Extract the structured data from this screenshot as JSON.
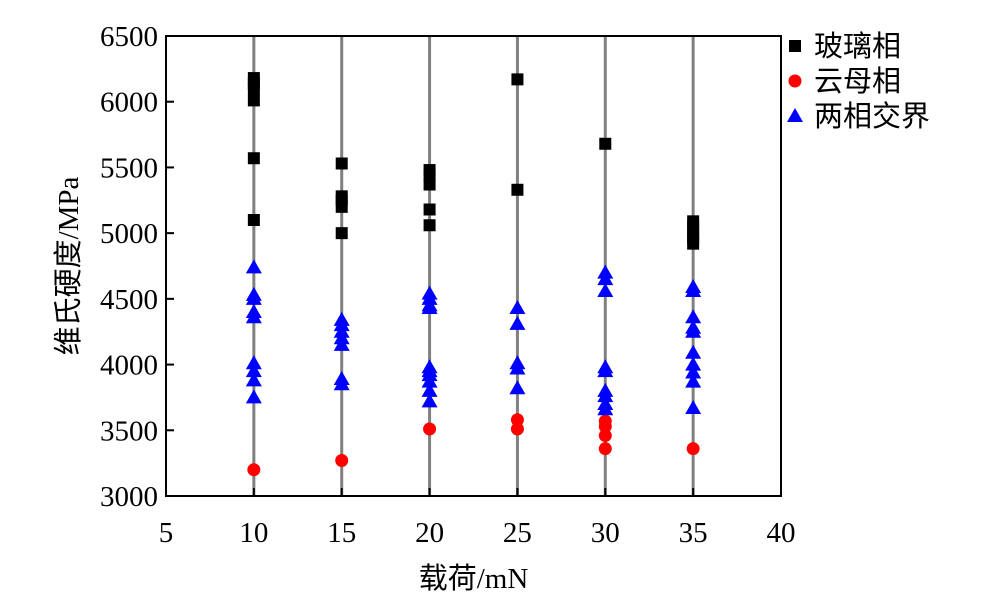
{
  "chart_data": {
    "type": "scatter",
    "xlabel": "载荷/mN",
    "ylabel": "维氏硬度/MPa",
    "xlim": [
      5,
      40
    ],
    "ylim": [
      3000,
      6500
    ],
    "xticks": [
      5,
      10,
      15,
      20,
      25,
      30,
      35,
      40
    ],
    "yticks": [
      3000,
      3500,
      4000,
      4500,
      5000,
      5500,
      6000,
      6500
    ],
    "vertical_lines_at": [
      10,
      15,
      20,
      25,
      30,
      35
    ],
    "legend_position": "top-right, outside plot area",
    "grid": false,
    "series": [
      {
        "name": "玻璃相",
        "marker": "square",
        "color": "#000000",
        "points": [
          [
            10,
            6180
          ],
          [
            10,
            6140
          ],
          [
            10,
            6100
          ],
          [
            10,
            6010
          ],
          [
            10,
            5570
          ],
          [
            10,
            5100
          ],
          [
            15,
            5530
          ],
          [
            15,
            5280
          ],
          [
            15,
            5250
          ],
          [
            15,
            5200
          ],
          [
            15,
            5000
          ],
          [
            20,
            5480
          ],
          [
            20,
            5440
          ],
          [
            20,
            5370
          ],
          [
            20,
            5180
          ],
          [
            20,
            5060
          ],
          [
            25,
            6170
          ],
          [
            25,
            5330
          ],
          [
            30,
            5680
          ],
          [
            35,
            5090
          ],
          [
            35,
            5050
          ],
          [
            35,
            5000
          ],
          [
            35,
            4960
          ],
          [
            35,
            4920
          ]
        ]
      },
      {
        "name": "云母相",
        "marker": "circle",
        "color": "#ff0000",
        "points": [
          [
            10,
            3200
          ],
          [
            15,
            3270
          ],
          [
            20,
            3510
          ],
          [
            25,
            3580
          ],
          [
            25,
            3510
          ],
          [
            30,
            3570
          ],
          [
            30,
            3530
          ],
          [
            30,
            3460
          ],
          [
            30,
            3360
          ],
          [
            35,
            3360
          ]
        ]
      },
      {
        "name": "两相交界",
        "marker": "triangle",
        "color": "#0000ff",
        "points": [
          [
            10,
            4740
          ],
          [
            10,
            4530
          ],
          [
            10,
            4500
          ],
          [
            10,
            4400
          ],
          [
            10,
            4360
          ],
          [
            10,
            4010
          ],
          [
            10,
            3950
          ],
          [
            10,
            3880
          ],
          [
            10,
            3750
          ],
          [
            15,
            4340
          ],
          [
            15,
            4300
          ],
          [
            15,
            4250
          ],
          [
            15,
            4200
          ],
          [
            15,
            4150
          ],
          [
            15,
            3890
          ],
          [
            15,
            3850
          ],
          [
            20,
            4540
          ],
          [
            20,
            4500
          ],
          [
            20,
            4450
          ],
          [
            20,
            4430
          ],
          [
            20,
            3980
          ],
          [
            20,
            3950
          ],
          [
            20,
            3920
          ],
          [
            20,
            3870
          ],
          [
            20,
            3800
          ],
          [
            20,
            3720
          ],
          [
            25,
            4430
          ],
          [
            25,
            4310
          ],
          [
            25,
            4010
          ],
          [
            25,
            3970
          ],
          [
            25,
            3820
          ],
          [
            30,
            4700
          ],
          [
            30,
            4650
          ],
          [
            30,
            4560
          ],
          [
            30,
            3980
          ],
          [
            30,
            3950
          ],
          [
            30,
            3800
          ],
          [
            30,
            3760
          ],
          [
            30,
            3700
          ],
          [
            30,
            3660
          ],
          [
            35,
            4590
          ],
          [
            35,
            4560
          ],
          [
            35,
            4360
          ],
          [
            35,
            4280
          ],
          [
            35,
            4250
          ],
          [
            35,
            4090
          ],
          [
            35,
            4000
          ],
          [
            35,
            3940
          ],
          [
            35,
            3870
          ],
          [
            35,
            3670
          ]
        ]
      }
    ]
  }
}
